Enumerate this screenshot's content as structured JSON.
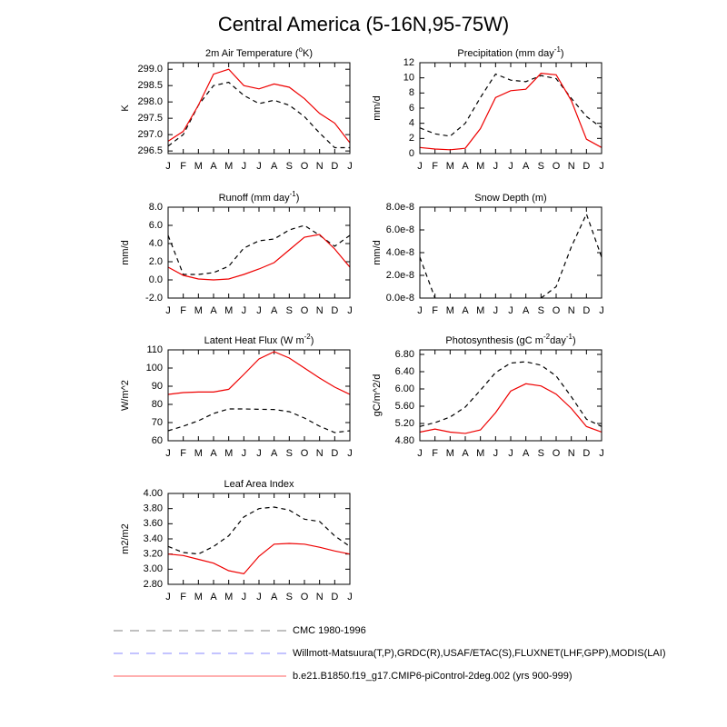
{
  "title": "Central America (5-16N,95-75W)",
  "legend": [
    {
      "label": "CMC 1980-1996",
      "color": "#9a9a9a",
      "dash": true
    },
    {
      "label": "Willmott-Matsuura(T,P),GRDC(R),USAF/ETAC(S),FLUXNET(LHF,GPP),MODIS(LAI)",
      "color": "#a0a0ff",
      "dash": true
    },
    {
      "label": "b.e21.B1850.f19_g17.CMIP6-piControl-2deg.002 (yrs 900-999)",
      "color": "#ff8080",
      "dash": false
    }
  ],
  "chart_data": [
    {
      "type": "line",
      "title": [
        {
          "text": "2m Air Temperature ("
        },
        {
          "text": "o",
          "sup": true
        },
        {
          "text": "K)"
        }
      ],
      "ylabel": "K",
      "categories": [
        "J",
        "F",
        "M",
        "A",
        "M",
        "J",
        "J",
        "A",
        "S",
        "O",
        "N",
        "D",
        "J"
      ],
      "ylim": [
        296.42,
        299.2
      ],
      "yticks": [
        296.5,
        {
          "value": 297.0,
          "label": "297.0"
        },
        297.5,
        {
          "value": 298.0,
          "label": "298.0"
        },
        298.5,
        {
          "value": 299.0,
          "label": "299.0"
        }
      ],
      "series": [
        {
          "color": "#000000",
          "dash": true,
          "values": [
            296.65,
            297.0,
            297.9,
            298.5,
            298.6,
            298.2,
            297.95,
            298.05,
            297.9,
            297.55,
            297.05,
            296.6,
            296.6
          ]
        },
        {
          "color": "#ee0000",
          "dash": false,
          "values": [
            296.8,
            297.1,
            297.9,
            298.85,
            299.0,
            298.5,
            298.4,
            298.55,
            298.45,
            298.1,
            297.65,
            297.35,
            296.75
          ]
        }
      ]
    },
    {
      "type": "line",
      "title": [
        {
          "text": "Precipitation (mm day"
        },
        {
          "text": "-1",
          "sup": true
        },
        {
          "text": ")"
        }
      ],
      "ylabel": "mm/d",
      "categories": [
        "J",
        "F",
        "M",
        "A",
        "M",
        "J",
        "J",
        "A",
        "S",
        "O",
        "N",
        "D",
        "J"
      ],
      "ylim": [
        0,
        12
      ],
      "yticks": [
        0,
        2,
        4,
        6,
        8,
        10,
        12
      ],
      "series": [
        {
          "color": "#000000",
          "dash": true,
          "values": [
            3.4,
            2.6,
            2.3,
            4.0,
            7.4,
            10.5,
            9.7,
            9.5,
            10.3,
            9.9,
            7.3,
            4.9,
            3.4
          ]
        },
        {
          "color": "#ee0000",
          "dash": false,
          "values": [
            0.8,
            0.6,
            0.5,
            0.7,
            3.3,
            7.4,
            8.3,
            8.5,
            10.6,
            10.4,
            7.0,
            1.9,
            0.8
          ]
        }
      ]
    },
    {
      "type": "line",
      "title": [
        {
          "text": "Runoff (mm day"
        },
        {
          "text": "-1",
          "sup": true
        },
        {
          "text": ")"
        }
      ],
      "ylabel": "mm/d",
      "categories": [
        "J",
        "F",
        "M",
        "A",
        "M",
        "J",
        "J",
        "A",
        "S",
        "O",
        "N",
        "D",
        "J"
      ],
      "ylim": [
        -2,
        8
      ],
      "yticks": [
        {
          "value": -2,
          "label": "-2.0"
        },
        {
          "value": 0,
          "label": "0.0"
        },
        {
          "value": 2,
          "label": "2.0"
        },
        {
          "value": 4,
          "label": "4.0"
        },
        {
          "value": 6,
          "label": "6.0"
        },
        {
          "value": 8,
          "label": "8.0"
        }
      ],
      "series": [
        {
          "color": "#000000",
          "dash": true,
          "values": [
            4.9,
            0.6,
            0.6,
            0.8,
            1.5,
            3.5,
            4.3,
            4.5,
            5.5,
            6.0,
            4.9,
            3.7,
            4.9
          ]
        },
        {
          "color": "#ee0000",
          "dash": false,
          "values": [
            1.4,
            0.5,
            0.1,
            0.0,
            0.1,
            0.6,
            1.2,
            1.9,
            3.3,
            4.7,
            5.0,
            3.4,
            1.4
          ]
        }
      ]
    },
    {
      "type": "line",
      "title": [
        {
          "text": "Snow Depth (m)"
        }
      ],
      "ylabel": "mm/d",
      "categories": [
        "J",
        "F",
        "M",
        "A",
        "M",
        "J",
        "J",
        "A",
        "S",
        "O",
        "N",
        "D",
        "J"
      ],
      "ylim": [
        0,
        8e-08
      ],
      "yticks": [
        {
          "value": 0,
          "label": "0.0e-8"
        },
        {
          "value": 2e-08,
          "label": "2.0e-8"
        },
        {
          "value": 4e-08,
          "label": "4.0e-8"
        },
        {
          "value": 6e-08,
          "label": "6.0e-8"
        },
        {
          "value": 8e-08,
          "label": "8.0e-8"
        }
      ],
      "series": [
        {
          "color": "#000000",
          "dash": true,
          "values": [
            3.6e-08,
            0,
            null,
            null,
            null,
            null,
            null,
            null,
            0,
            1e-08,
            4.5e-08,
            7.4e-08,
            3.6e-08
          ]
        }
      ]
    },
    {
      "type": "line",
      "title": [
        {
          "text": "Latent Heat Flux (W m"
        },
        {
          "text": "-2",
          "sup": true
        },
        {
          "text": ")"
        }
      ],
      "ylabel": "W/m^2",
      "categories": [
        "J",
        "F",
        "M",
        "A",
        "M",
        "J",
        "J",
        "A",
        "S",
        "O",
        "N",
        "D",
        "J"
      ],
      "ylim": [
        60,
        110
      ],
      "yticks": [
        60,
        70,
        80,
        90,
        100,
        110
      ],
      "series": [
        {
          "color": "#000000",
          "dash": true,
          "values": [
            65.5,
            68,
            71,
            75,
            77.5,
            77.5,
            77.3,
            77.2,
            76,
            72.5,
            68,
            64.5,
            65.5
          ]
        },
        {
          "color": "#ee0000",
          "dash": false,
          "values": [
            85.5,
            86.5,
            86.8,
            86.8,
            88.3,
            96.5,
            105,
            109,
            105.5,
            100,
            94.5,
            89.5,
            85.5
          ]
        }
      ]
    },
    {
      "type": "line",
      "title": [
        {
          "text": "Photosynthesis (gC m"
        },
        {
          "text": "-2",
          "sup": true
        },
        {
          "text": "day"
        },
        {
          "text": "-1",
          "sup": true
        },
        {
          "text": ")"
        }
      ],
      "ylabel": "gC/m^2/d",
      "categories": [
        "J",
        "F",
        "M",
        "A",
        "M",
        "J",
        "J",
        "A",
        "S",
        "O",
        "N",
        "D",
        "J"
      ],
      "ylim": [
        4.8,
        6.905
      ],
      "yticks": [
        {
          "value": 4.8,
          "label": "4.80"
        },
        {
          "value": 5.2,
          "label": "5.20"
        },
        {
          "value": 5.6,
          "label": "5.60"
        },
        {
          "value": 6.0,
          "label": "6.00"
        },
        {
          "value": 6.4,
          "label": "6.40"
        },
        {
          "value": 6.8,
          "label": "6.80"
        }
      ],
      "series": [
        {
          "color": "#000000",
          "dash": true,
          "values": [
            5.13,
            5.22,
            5.35,
            5.58,
            5.97,
            6.38,
            6.6,
            6.63,
            6.55,
            6.3,
            5.82,
            5.3,
            5.13
          ]
        },
        {
          "color": "#ee0000",
          "dash": false,
          "values": [
            5.0,
            5.07,
            5.0,
            4.97,
            5.05,
            5.45,
            5.95,
            6.12,
            6.07,
            5.88,
            5.55,
            5.13,
            5.0
          ]
        }
      ]
    },
    {
      "type": "line",
      "title": [
        {
          "text": "Leaf Area Index"
        }
      ],
      "ylabel": "m2/m2",
      "categories": [
        "J",
        "F",
        "M",
        "A",
        "M",
        "J",
        "J",
        "A",
        "S",
        "O",
        "N",
        "D",
        "J"
      ],
      "ylim": [
        2.8,
        4.0
      ],
      "yticks": [
        {
          "value": 2.8,
          "label": "2.80"
        },
        {
          "value": 3.0,
          "label": "3.00"
        },
        {
          "value": 3.2,
          "label": "3.20"
        },
        {
          "value": 3.4,
          "label": "3.40"
        },
        {
          "value": 3.6,
          "label": "3.60"
        },
        {
          "value": 3.8,
          "label": "3.80"
        },
        {
          "value": 4.0,
          "label": "4.00"
        }
      ],
      "series": [
        {
          "color": "#000000",
          "dash": true,
          "values": [
            3.3,
            3.22,
            3.2,
            3.3,
            3.44,
            3.69,
            3.8,
            3.82,
            3.78,
            3.66,
            3.63,
            3.44,
            3.3
          ]
        },
        {
          "color": "#ee0000",
          "dash": false,
          "values": [
            3.2,
            3.18,
            3.13,
            3.08,
            2.98,
            2.94,
            3.17,
            3.33,
            3.34,
            3.33,
            3.29,
            3.24,
            3.2
          ]
        }
      ]
    }
  ]
}
